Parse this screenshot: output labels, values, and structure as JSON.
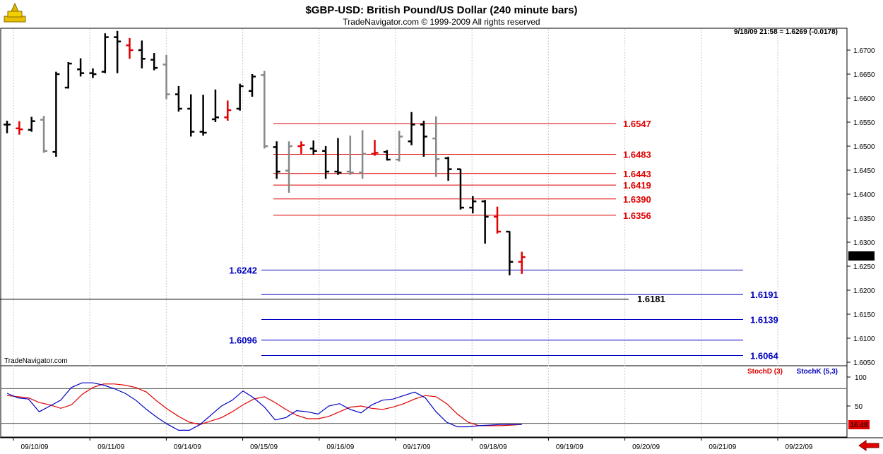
{
  "header": {
    "title": "$GBP-USD:  British Pound/US Dollar  (240 minute bars)",
    "copyright": "TradeNavigator.com © 1999-2009 All rights reserved",
    "last_quote": "9/18/09 21:58 = 1.6269 (-0.0178)",
    "watermark": "TradeNavigator.com"
  },
  "colors": {
    "up": "#000000",
    "down": "#888888",
    "highlight": "#e00000",
    "resistance": "#e00000",
    "support": "#0000c0",
    "stochD": "#e00000",
    "stochK": "#0000c0"
  },
  "chart_data": [
    {
      "type": "ohlc",
      "y_ticks": [
        "1.6050",
        "1.6100",
        "1.6150",
        "1.6200",
        "1.6250",
        "1.6300",
        "1.6350",
        "1.6400",
        "1.6450",
        "1.6500",
        "1.6550",
        "1.6600",
        "1.6650",
        "1.6700"
      ],
      "ylim": [
        1.6045,
        1.6745
      ],
      "x_labels": [
        "09/10/09",
        "09/11/09",
        "09/14/09",
        "09/15/09",
        "09/16/09",
        "09/17/09",
        "09/18/09",
        "09/19/09",
        "09/20/09",
        "09/21/09",
        "09/22/09"
      ],
      "current_price": "1.6269",
      "bars": [
        {
          "o": 1.6545,
          "h": 1.6553,
          "l": 1.6527,
          "c": 1.6545,
          "s": "u"
        },
        {
          "o": 1.6537,
          "h": 1.6552,
          "l": 1.6524,
          "c": 1.6535,
          "s": "h"
        },
        {
          "o": 1.6534,
          "h": 1.6561,
          "l": 1.653,
          "c": 1.6552,
          "s": "u"
        },
        {
          "o": 1.6555,
          "h": 1.6563,
          "l": 1.6486,
          "c": 1.649,
          "s": "d"
        },
        {
          "o": 1.6488,
          "h": 1.6655,
          "l": 1.6478,
          "c": 1.665,
          "s": "u"
        },
        {
          "o": 1.6622,
          "h": 1.6675,
          "l": 1.662,
          "c": 1.6672,
          "s": "u"
        },
        {
          "o": 1.666,
          "h": 1.6683,
          "l": 1.6645,
          "c": 1.6652,
          "s": "u"
        },
        {
          "o": 1.6652,
          "h": 1.6662,
          "l": 1.6642,
          "c": 1.665,
          "s": "u"
        },
        {
          "o": 1.6655,
          "h": 1.6735,
          "l": 1.6652,
          "c": 1.6727,
          "s": "u"
        },
        {
          "o": 1.6727,
          "h": 1.674,
          "l": 1.6652,
          "c": 1.6718,
          "s": "u"
        },
        {
          "o": 1.671,
          "h": 1.6725,
          "l": 1.6682,
          "c": 1.67,
          "s": "h"
        },
        {
          "o": 1.67,
          "h": 1.672,
          "l": 1.6662,
          "c": 1.6682,
          "s": "u"
        },
        {
          "o": 1.668,
          "h": 1.6694,
          "l": 1.6658,
          "c": 1.6663,
          "s": "u"
        },
        {
          "o": 1.667,
          "h": 1.669,
          "l": 1.6598,
          "c": 1.6608,
          "s": "d"
        },
        {
          "o": 1.6608,
          "h": 1.6625,
          "l": 1.6572,
          "c": 1.6578,
          "s": "u"
        },
        {
          "o": 1.6578,
          "h": 1.6608,
          "l": 1.652,
          "c": 1.653,
          "s": "u"
        },
        {
          "o": 1.653,
          "h": 1.6607,
          "l": 1.6522,
          "c": 1.6528,
          "s": "u"
        },
        {
          "o": 1.6556,
          "h": 1.6618,
          "l": 1.655,
          "c": 1.656,
          "s": "u"
        },
        {
          "o": 1.656,
          "h": 1.6595,
          "l": 1.6553,
          "c": 1.6575,
          "s": "h"
        },
        {
          "o": 1.6578,
          "h": 1.663,
          "l": 1.6574,
          "c": 1.6625,
          "s": "u"
        },
        {
          "o": 1.6615,
          "h": 1.665,
          "l": 1.6603,
          "c": 1.6645,
          "s": "u"
        },
        {
          "o": 1.6648,
          "h": 1.6657,
          "l": 1.6495,
          "c": 1.65,
          "s": "d"
        },
        {
          "o": 1.6498,
          "h": 1.651,
          "l": 1.6432,
          "c": 1.6447,
          "s": "u"
        },
        {
          "o": 1.6449,
          "h": 1.651,
          "l": 1.6403,
          "c": 1.65,
          "s": "d"
        },
        {
          "o": 1.65,
          "h": 1.651,
          "l": 1.6484,
          "c": 1.6502,
          "s": "h"
        },
        {
          "o": 1.6495,
          "h": 1.6512,
          "l": 1.6482,
          "c": 1.649,
          "s": "u"
        },
        {
          "o": 1.649,
          "h": 1.65,
          "l": 1.6432,
          "c": 1.6447,
          "s": "u"
        },
        {
          "o": 1.6447,
          "h": 1.6517,
          "l": 1.644,
          "c": 1.6445,
          "s": "u"
        },
        {
          "o": 1.6447,
          "h": 1.6522,
          "l": 1.644,
          "c": 1.6445,
          "s": "d"
        },
        {
          "o": 1.6445,
          "h": 1.6533,
          "l": 1.6432,
          "c": 1.6484,
          "s": "d"
        },
        {
          "o": 1.6484,
          "h": 1.6513,
          "l": 1.648,
          "c": 1.6486,
          "s": "h"
        },
        {
          "o": 1.6488,
          "h": 1.6492,
          "l": 1.647,
          "c": 1.6472,
          "s": "u"
        },
        {
          "o": 1.6472,
          "h": 1.6532,
          "l": 1.6468,
          "c": 1.652,
          "s": "d"
        },
        {
          "o": 1.651,
          "h": 1.6571,
          "l": 1.6502,
          "c": 1.6545,
          "s": "u"
        },
        {
          "o": 1.6545,
          "h": 1.6553,
          "l": 1.6478,
          "c": 1.652,
          "s": "u"
        },
        {
          "o": 1.6516,
          "h": 1.6562,
          "l": 1.6436,
          "c": 1.6473,
          "s": "d"
        },
        {
          "o": 1.6475,
          "h": 1.6478,
          "l": 1.6428,
          "c": 1.6452,
          "s": "u"
        },
        {
          "o": 1.6452,
          "h": 1.6453,
          "l": 1.6368,
          "c": 1.6372,
          "s": "u"
        },
        {
          "o": 1.6372,
          "h": 1.6396,
          "l": 1.636,
          "c": 1.6385,
          "s": "u"
        },
        {
          "o": 1.6385,
          "h": 1.6388,
          "l": 1.6297,
          "c": 1.6353,
          "s": "u"
        },
        {
          "o": 1.6353,
          "h": 1.6374,
          "l": 1.6318,
          "c": 1.6322,
          "s": "h"
        },
        {
          "o": 1.6322,
          "h": 1.6323,
          "l": 1.6231,
          "c": 1.6259,
          "s": "u"
        },
        {
          "o": 1.6259,
          "h": 1.628,
          "l": 1.6234,
          "c": 1.6269,
          "s": "h"
        }
      ],
      "levels": [
        {
          "value": 1.6547,
          "label": "1.6547",
          "kind": "resistance"
        },
        {
          "value": 1.6483,
          "label": "1.6483",
          "kind": "resistance"
        },
        {
          "value": 1.6443,
          "label": "1.6443",
          "kind": "resistance"
        },
        {
          "value": 1.6419,
          "label": "1.6419",
          "kind": "resistance"
        },
        {
          "value": 1.639,
          "label": "1.6390",
          "kind": "resistance"
        },
        {
          "value": 1.6356,
          "label": "1.6356",
          "kind": "resistance"
        },
        {
          "value": 1.6242,
          "label": "1.6242",
          "kind": "support",
          "label_side": "left"
        },
        {
          "value": 1.6191,
          "label": "1.6191",
          "kind": "support",
          "label_side": "right"
        },
        {
          "value": 1.6181,
          "label": "1.6181",
          "kind": "pivot",
          "label_side": "middle"
        },
        {
          "value": 1.6139,
          "label": "1.6139",
          "kind": "support",
          "label_side": "right"
        },
        {
          "value": 1.6096,
          "label": "1.6096",
          "kind": "support",
          "label_side": "left"
        },
        {
          "value": 1.6064,
          "label": "1.6064",
          "kind": "support",
          "label_side": "right"
        }
      ]
    },
    {
      "type": "line",
      "y_ticks": [
        "50",
        "100"
      ],
      "ylim": [
        0,
        100
      ],
      "guide_lines": [
        80,
        20
      ],
      "current_value": "16.48",
      "series": [
        {
          "name": "StochD (3)",
          "color_key": "stochD",
          "values": [
            68,
            66,
            64,
            56,
            52,
            46,
            52,
            70,
            82,
            88,
            88,
            86,
            82,
            74,
            58,
            44,
            32,
            22,
            18,
            24,
            30,
            40,
            52,
            62,
            66,
            56,
            44,
            34,
            28,
            28,
            32,
            40,
            48,
            50,
            46,
            44,
            48,
            54,
            62,
            68,
            66,
            54,
            36,
            22,
            16,
            16,
            16,
            17,
            18
          ]
        },
        {
          "name": "StochK (5,3)",
          "color_key": "stochK",
          "values": [
            72,
            64,
            62,
            40,
            50,
            60,
            82,
            90,
            90,
            86,
            80,
            72,
            60,
            44,
            30,
            18,
            8,
            8,
            18,
            34,
            50,
            60,
            76,
            64,
            48,
            26,
            30,
            42,
            40,
            36,
            50,
            54,
            44,
            38,
            52,
            60,
            62,
            68,
            74,
            64,
            40,
            22,
            14,
            14,
            16,
            17,
            18,
            18,
            18
          ]
        }
      ]
    }
  ]
}
